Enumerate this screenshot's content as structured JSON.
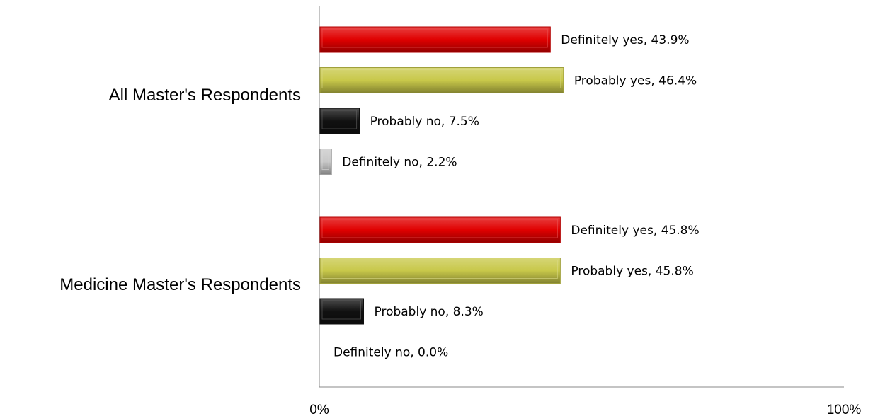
{
  "chart_data": {
    "type": "bar",
    "orientation": "horizontal",
    "categories": [
      "All Master's Respondents",
      "Medicine Master's Respondents"
    ],
    "series": [
      {
        "name": "Definitely yes",
        "color": "#e00000",
        "values": [
          43.9,
          45.8
        ],
        "labels": [
          "Definitely yes, 43.9%",
          "Definitely yes, 45.8%"
        ]
      },
      {
        "name": "Probably yes",
        "color": "#c8c84a",
        "values": [
          46.4,
          45.8
        ],
        "labels": [
          "Probably yes, 46.4%",
          "Probably yes, 45.8%"
        ]
      },
      {
        "name": "Probably no",
        "color": "#111111",
        "values": [
          7.5,
          8.3
        ],
        "labels": [
          "Probably no, 7.5%",
          "Probably no, 8.3%"
        ]
      },
      {
        "name": "Definitely no",
        "color": "#c8c8c8",
        "values": [
          2.2,
          0.0
        ],
        "labels": [
          "Definitely no, 2.2%",
          "Definitely no, 0.0%"
        ]
      }
    ],
    "xlim": [
      0,
      100
    ],
    "x_ticks": [
      "0%",
      "100%"
    ],
    "title": "",
    "xlabel": "",
    "ylabel": "",
    "grid": false,
    "legend": "none"
  }
}
